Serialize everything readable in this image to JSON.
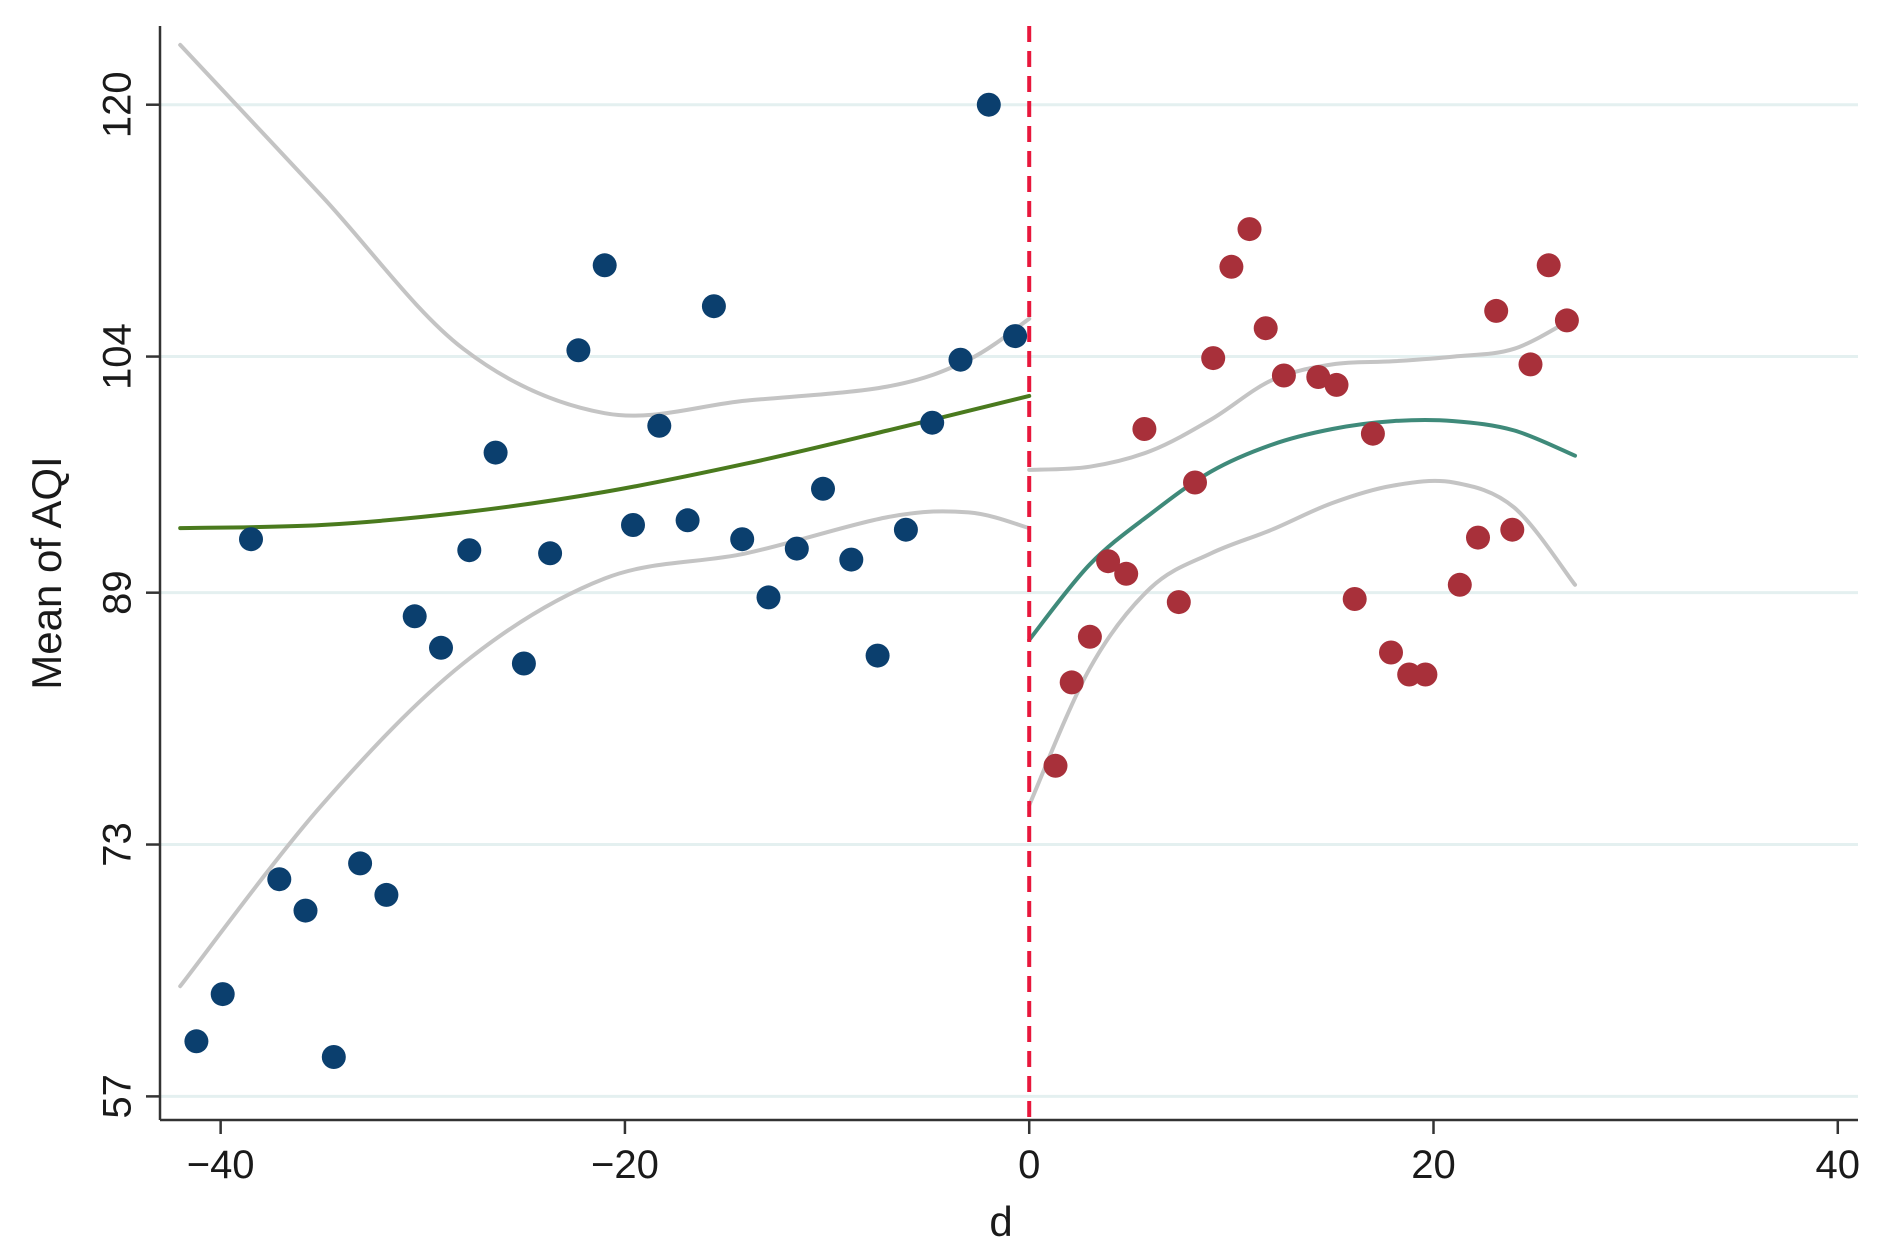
{
  "chart_data": {
    "type": "scatter",
    "title": "",
    "xlabel": "d",
    "ylabel": "Mean of AQI",
    "xlim": [
      -43,
      41
    ],
    "ylim": [
      55.5,
      125
    ],
    "xticks": [
      -40,
      -20,
      0,
      20,
      40
    ],
    "xtick_labels": [
      "−40",
      "−20",
      "0",
      "20",
      "40"
    ],
    "yticks": [
      57,
      73,
      89,
      104,
      120
    ],
    "ytick_labels": [
      "57",
      "73",
      "89",
      "104",
      "120"
    ],
    "grid": "horizontal",
    "legend": "none",
    "cutoff": {
      "x": 0,
      "style": "dashed",
      "color": "#e8173c"
    },
    "colors": {
      "left_points": "#0b3f6e",
      "right_points": "#a8303a",
      "left_fit": "#4a7a1e",
      "right_fit": "#3f8a7a",
      "ci_band": "#c4c4c4",
      "grid": "#e4f0f0",
      "axis": "#333333"
    },
    "series": [
      {
        "role": "left_points",
        "x": [
          -41.2,
          -39.9,
          -38.5,
          -37.1,
          -35.8,
          -34.4,
          -33.1,
          -31.8,
          -30.4,
          -29.1,
          -27.7,
          -26.4,
          -25.0,
          -23.7,
          -22.3,
          -21.0,
          -19.6,
          -18.3,
          -16.9,
          -15.6,
          -14.2,
          -12.9,
          -11.5,
          -10.2,
          -8.8,
          -7.5,
          -6.1,
          -4.8,
          -3.4,
          -2.0,
          -0.7
        ],
        "y": [
          60.5,
          63.5,
          92.4,
          70.8,
          68.8,
          59.5,
          71.8,
          69.8,
          87.5,
          85.5,
          91.7,
          97.9,
          84.5,
          91.5,
          104.4,
          109.8,
          93.3,
          99.6,
          93.6,
          107.2,
          92.4,
          88.7,
          91.8,
          95.6,
          91.1,
          85.0,
          93.0,
          99.8,
          103.8,
          120.0,
          105.3
        ]
      },
      {
        "role": "right_points",
        "x": [
          1.3,
          2.1,
          3.0,
          3.9,
          4.8,
          5.7,
          7.4,
          8.2,
          9.1,
          10.0,
          10.9,
          11.7,
          12.6,
          14.3,
          15.2,
          16.1,
          17.0,
          17.9,
          18.8,
          19.6,
          21.3,
          22.2,
          23.1,
          23.9,
          24.8,
          25.7,
          26.6
        ],
        "y": [
          78.0,
          83.3,
          86.2,
          91.0,
          90.2,
          99.4,
          88.4,
          96.0,
          103.9,
          109.7,
          112.1,
          105.8,
          102.8,
          102.7,
          102.2,
          88.6,
          99.1,
          85.2,
          83.8,
          83.8,
          89.5,
          92.5,
          106.9,
          93.0,
          103.5,
          109.8,
          106.3
        ]
      },
      {
        "role": "left_fit",
        "x": [
          -42,
          -35,
          -28,
          -21,
          -14,
          -7,
          0
        ],
        "y": [
          93.1,
          93.3,
          94.1,
          95.4,
          97.2,
          99.3,
          101.5
        ]
      },
      {
        "role": "left_ci_upper",
        "x": [
          -42,
          -35,
          -28,
          -21,
          -14,
          -7,
          -3,
          0
        ],
        "y": [
          123.8,
          114.2,
          104.5,
          100.4,
          101.2,
          102.1,
          103.8,
          106.4
        ]
      },
      {
        "role": "left_ci_lower",
        "x": [
          -42,
          -35,
          -28,
          -21,
          -14,
          -7,
          -3,
          0
        ],
        "y": [
          64.0,
          75.5,
          84.5,
          89.9,
          91.5,
          93.8,
          94.1,
          93.1
        ]
      },
      {
        "role": "right_fit",
        "x": [
          0,
          3,
          6,
          9,
          12,
          15,
          18,
          21,
          24,
          27
        ],
        "y": [
          86.0,
          90.8,
          94.0,
          96.7,
          98.4,
          99.4,
          99.9,
          99.9,
          99.3,
          97.7
        ]
      },
      {
        "role": "right_ci_upper",
        "x": [
          0,
          3,
          6,
          9,
          12,
          15,
          18,
          21,
          24,
          27
        ],
        "y": [
          96.8,
          97.0,
          98.0,
          100.0,
          102.5,
          103.5,
          103.7,
          104.0,
          104.5,
          106.5
        ]
      },
      {
        "role": "right_ci_lower",
        "x": [
          0,
          3,
          6,
          9,
          12,
          15,
          18,
          21,
          24,
          27
        ],
        "y": [
          75.5,
          84.2,
          89.3,
          91.5,
          93.0,
          94.7,
          95.8,
          96.0,
          94.4,
          89.5
        ]
      }
    ]
  }
}
